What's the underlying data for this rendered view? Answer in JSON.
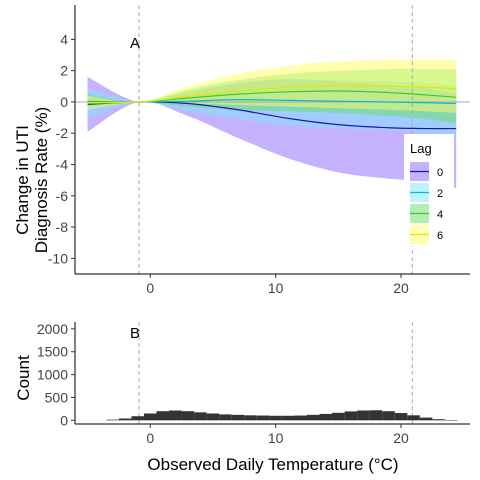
{
  "chart_data": [
    {
      "type": "line",
      "panel_label": "A",
      "ylabel_lines": [
        "Change in UTI",
        "Diagnosis Rate (%)"
      ],
      "xlim": [
        -6,
        25.5
      ],
      "ylim": [
        -11,
        6.2
      ],
      "x_ticks": [
        0,
        10,
        20
      ],
      "x_tick_labels": [
        "0",
        "10",
        "20"
      ],
      "y_ticks": [
        4,
        2,
        0,
        -2,
        -4,
        -6,
        -8,
        -10
      ],
      "y_tick_labels": [
        "4",
        "2",
        "0",
        "-2",
        "-4",
        "-6",
        "-8",
        "-10"
      ],
      "reference_lines_x": [
        -0.9,
        20.9
      ],
      "reference_line_y": 0,
      "grid": false,
      "legend": {
        "title": "Lag",
        "placement": "right",
        "entries": [
          "0",
          "2",
          "4",
          "6"
        ]
      },
      "series": [
        {
          "name": "0",
          "line_color": "#1a1aa8",
          "fill_color": "#8c66ff",
          "x": [
            -5,
            -0.9,
            3,
            7,
            11,
            15,
            19,
            22,
            24.4
          ],
          "y": [
            -0.15,
            0,
            -0.1,
            -0.5,
            -1.05,
            -1.45,
            -1.65,
            -1.7,
            -1.7
          ],
          "lower": [
            -1.9,
            0,
            -0.9,
            -2.3,
            -3.6,
            -4.5,
            -4.9,
            -5.1,
            -5.5
          ],
          "upper": [
            1.6,
            0,
            0.6,
            1.2,
            1.45,
            1.3,
            1.1,
            0.9,
            0.5
          ]
        },
        {
          "name": "2",
          "line_color": "#00bbd6",
          "fill_color": "#7fe6ff",
          "x": [
            -5,
            -0.9,
            3,
            7,
            11,
            15,
            19,
            22,
            24.4
          ],
          "y": [
            -0.1,
            0,
            0.05,
            0.15,
            0.1,
            0.05,
            0.0,
            -0.05,
            -0.1
          ],
          "lower": [
            -1.1,
            0,
            -0.6,
            -1.1,
            -1.5,
            -1.7,
            -1.8,
            -2.0,
            -2.4
          ],
          "upper": [
            0.9,
            0,
            0.7,
            1.2,
            1.4,
            1.4,
            1.3,
            1.2,
            1.0
          ]
        },
        {
          "name": "4",
          "line_color": "#33cc33",
          "fill_color": "#66dd66",
          "x": [
            -5,
            -0.9,
            3,
            7,
            11,
            15,
            19,
            22,
            24.4
          ],
          "y": [
            0.05,
            0,
            0.25,
            0.5,
            0.65,
            0.7,
            0.6,
            0.45,
            0.3
          ],
          "lower": [
            -0.4,
            0,
            -0.3,
            -0.5,
            -0.6,
            -0.7,
            -0.9,
            -1.1,
            -1.4
          ],
          "upper": [
            0.5,
            0,
            0.8,
            1.4,
            1.8,
            2.0,
            2.1,
            2.1,
            2.1
          ]
        },
        {
          "name": "6",
          "line_color": "#e6e600",
          "fill_color": "#ffff66",
          "x": [
            -5,
            -0.9,
            3,
            7,
            11,
            15,
            19,
            22,
            24.4
          ],
          "y": [
            -0.05,
            0,
            0.35,
            0.7,
            0.95,
            1.05,
            1.0,
            0.95,
            0.85
          ],
          "lower": [
            -0.5,
            0,
            -0.1,
            -0.2,
            -0.3,
            -0.4,
            -0.5,
            -0.6,
            -0.7
          ],
          "upper": [
            0.4,
            0,
            1.0,
            1.8,
            2.3,
            2.6,
            2.7,
            2.7,
            2.7
          ]
        }
      ]
    },
    {
      "type": "bar",
      "panel_label": "B",
      "xlabel": "Observed Daily Temperature (°C)",
      "ylabel": "Count",
      "xlim": [
        -6,
        25.5
      ],
      "ylim": [
        -80,
        2150
      ],
      "x_ticks": [
        0,
        10,
        20
      ],
      "x_tick_labels": [
        "0",
        "10",
        "20"
      ],
      "y_ticks": [
        0,
        500,
        1000,
        1500,
        2000
      ],
      "y_tick_labels": [
        "0",
        "500",
        "1000",
        "1500",
        "2000"
      ],
      "reference_lines_x": [
        -0.9,
        20.9
      ],
      "bar_color": "#333333",
      "bins": [
        {
          "x0": -3.5,
          "x1": -2.5,
          "value": 15
        },
        {
          "x0": -2.5,
          "x1": -1.5,
          "value": 40
        },
        {
          "x0": -1.5,
          "x1": -0.5,
          "value": 90
        },
        {
          "x0": -0.5,
          "x1": 0.5,
          "value": 150
        },
        {
          "x0": 0.5,
          "x1": 1.5,
          "value": 200
        },
        {
          "x0": 1.5,
          "x1": 2.5,
          "value": 215
        },
        {
          "x0": 2.5,
          "x1": 3.5,
          "value": 200
        },
        {
          "x0": 3.5,
          "x1": 4.5,
          "value": 175
        },
        {
          "x0": 4.5,
          "x1": 5.5,
          "value": 150
        },
        {
          "x0": 5.5,
          "x1": 6.5,
          "value": 130
        },
        {
          "x0": 6.5,
          "x1": 7.5,
          "value": 120
        },
        {
          "x0": 7.5,
          "x1": 8.5,
          "value": 110
        },
        {
          "x0": 8.5,
          "x1": 9.5,
          "value": 105
        },
        {
          "x0": 9.5,
          "x1": 10.5,
          "value": 100
        },
        {
          "x0": 10.5,
          "x1": 11.5,
          "value": 100
        },
        {
          "x0": 11.5,
          "x1": 12.5,
          "value": 105
        },
        {
          "x0": 12.5,
          "x1": 13.5,
          "value": 120
        },
        {
          "x0": 13.5,
          "x1": 14.5,
          "value": 140
        },
        {
          "x0": 14.5,
          "x1": 15.5,
          "value": 165
        },
        {
          "x0": 15.5,
          "x1": 16.5,
          "value": 195
        },
        {
          "x0": 16.5,
          "x1": 17.5,
          "value": 215
        },
        {
          "x0": 17.5,
          "x1": 18.5,
          "value": 220
        },
        {
          "x0": 18.5,
          "x1": 19.5,
          "value": 200
        },
        {
          "x0": 19.5,
          "x1": 20.5,
          "value": 160
        },
        {
          "x0": 20.5,
          "x1": 21.5,
          "value": 110
        },
        {
          "x0": 21.5,
          "x1": 22.5,
          "value": 60
        },
        {
          "x0": 22.5,
          "x1": 23.5,
          "value": 25
        },
        {
          "x0": 23.5,
          "x1": 24.5,
          "value": 8
        }
      ]
    }
  ]
}
